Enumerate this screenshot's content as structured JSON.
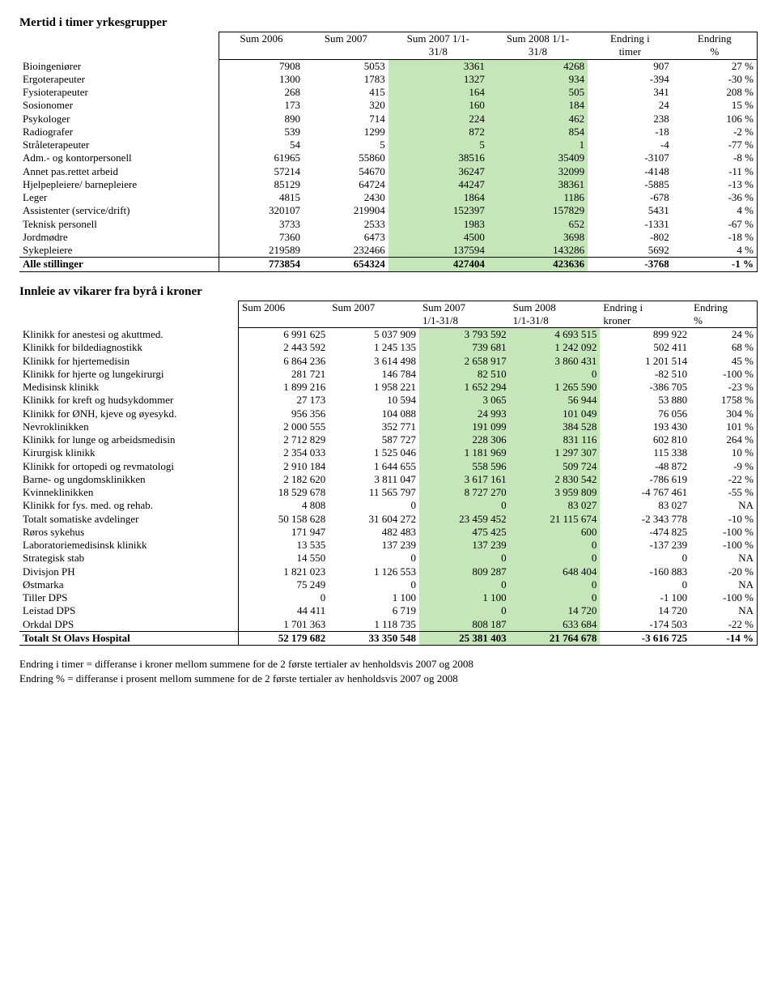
{
  "colors": {
    "highlight": "#c4e6b9",
    "border": "#000000",
    "text": "#000000",
    "background": "#ffffff"
  },
  "table1": {
    "title": "Mertid i timer yrkesgrupper",
    "headers": [
      "Sum 2006",
      "Sum 2007",
      "Sum 2007 1/1-31/8",
      "Sum 2008 1/1-31/8",
      "Endring i timer",
      "Endring %"
    ],
    "headers_l1": [
      "Sum 2006",
      "Sum 2007",
      "Sum 2007 1/1-",
      "Sum 2008 1/1-",
      "Endring i",
      "Endring"
    ],
    "headers_l2": [
      "",
      "",
      "31/8",
      "31/8",
      "timer",
      "%"
    ],
    "rows": [
      {
        "label": "Bioingeniører",
        "v": [
          "7908",
          "5053",
          "3361",
          "4268",
          "907",
          "27 %"
        ]
      },
      {
        "label": "Ergoterapeuter",
        "v": [
          "1300",
          "1783",
          "1327",
          "934",
          "-394",
          "-30 %"
        ]
      },
      {
        "label": "Fysioterapeuter",
        "v": [
          "268",
          "415",
          "164",
          "505",
          "341",
          "208 %"
        ]
      },
      {
        "label": "Sosionomer",
        "v": [
          "173",
          "320",
          "160",
          "184",
          "24",
          "15 %"
        ]
      },
      {
        "label": "Psykologer",
        "v": [
          "890",
          "714",
          "224",
          "462",
          "238",
          "106 %"
        ]
      },
      {
        "label": "Radiografer",
        "v": [
          "539",
          "1299",
          "872",
          "854",
          "-18",
          "-2 %"
        ]
      },
      {
        "label": "Stråleterapeuter",
        "v": [
          "54",
          "5",
          "5",
          "1",
          "-4",
          "-77 %"
        ]
      },
      {
        "label": "Adm.- og kontorpersonell",
        "v": [
          "61965",
          "55860",
          "38516",
          "35409",
          "-3107",
          "-8 %"
        ]
      },
      {
        "label": "Annet pas.rettet arbeid",
        "v": [
          "57214",
          "54670",
          "36247",
          "32099",
          "-4148",
          "-11 %"
        ]
      },
      {
        "label": "Hjelpepleiere/ barnepleiere",
        "v": [
          "85129",
          "64724",
          "44247",
          "38361",
          "-5885",
          "-13 %"
        ]
      },
      {
        "label": "Leger",
        "v": [
          "4815",
          "2430",
          "1864",
          "1186",
          "-678",
          "-36 %"
        ]
      },
      {
        "label": "Assistenter (service/drift)",
        "v": [
          "320107",
          "219904",
          "152397",
          "157829",
          "5431",
          "4 %"
        ]
      },
      {
        "label": "Teknisk personell",
        "v": [
          "3733",
          "2533",
          "1983",
          "652",
          "-1331",
          "-67 %"
        ]
      },
      {
        "label": "Jordmødre",
        "v": [
          "7360",
          "6473",
          "4500",
          "3698",
          "-802",
          "-18 %"
        ]
      },
      {
        "label": "Sykepleiere",
        "v": [
          "219589",
          "232466",
          "137594",
          "143286",
          "5692",
          "4 %"
        ]
      }
    ],
    "total": {
      "label": "Alle stillinger",
      "v": [
        "773854",
        "654324",
        "427404",
        "423636",
        "-3768",
        "-1 %"
      ]
    }
  },
  "table2": {
    "title": "Innleie av vikarer fra byrå i kroner",
    "headers_l1": [
      "Sum 2006",
      "Sum 2007",
      "Sum 2007",
      "Sum 2008",
      "Endring i",
      "Endring"
    ],
    "headers_l2": [
      "",
      "",
      "1/1-31/8",
      "1/1-31/8",
      "kroner",
      "%"
    ],
    "rows": [
      {
        "label": "Klinikk for anestesi og akuttmed.",
        "v": [
          "6 991 625",
          "5 037 909",
          "3 793 592",
          "4 693 515",
          "899 922",
          "24 %"
        ]
      },
      {
        "label": " Klinikk for bildediagnostikk",
        "v": [
          "2 443 592",
          "1 245 135",
          "739 681",
          "1 242 092",
          "502 411",
          "68 %"
        ]
      },
      {
        "label": "Klinikk for hjertemedisin",
        "v": [
          "6 864 236",
          "3 614 498",
          "2 658 917",
          "3 860 431",
          "1 201 514",
          "45 %"
        ]
      },
      {
        "label": " Klinikk for hjerte og lungekirurgi",
        "v": [
          "281 721",
          "146 784",
          "82 510",
          "0",
          "-82 510",
          "-100 %"
        ]
      },
      {
        "label": "Medisinsk klinikk",
        "v": [
          "1 899 216",
          "1 958 221",
          "1 652 294",
          "1 265 590",
          "-386 705",
          "-23 %"
        ]
      },
      {
        "label": "Klinikk for kreft og hudsykdommer",
        "v": [
          "27 173",
          "10 594",
          "3 065",
          "56 944",
          "53 880",
          "1758 %"
        ]
      },
      {
        "label": "Klinikk for ØNH, kjeve og øyesykd.",
        "v": [
          "956 356",
          "104 088",
          "24 993",
          "101 049",
          "76 056",
          "304 %"
        ]
      },
      {
        "label": "Nevroklinikken",
        "v": [
          "2 000 555",
          "352 771",
          "191 099",
          "384 528",
          "193 430",
          "101 %"
        ]
      },
      {
        "label": "Klinikk for lunge og arbeidsmedisin",
        "v": [
          "2 712 829",
          "587 727",
          "228 306",
          "831 116",
          "602 810",
          "264 %"
        ]
      },
      {
        "label": "Kirurgisk klinikk",
        "v": [
          "2 354 033",
          "1 525 046",
          "1 181 969",
          "1 297 307",
          "115 338",
          "10 %"
        ]
      },
      {
        "label": "Klinikk for ortopedi og revmatologi",
        "v": [
          "2 910 184",
          "1 644 655",
          "558 596",
          "509 724",
          "-48 872",
          "-9 %"
        ]
      },
      {
        "label": "Barne- og ungdomsklinikken",
        "v": [
          "2 182 620",
          "3 811 047",
          "3 617 161",
          "2 830 542",
          "-786 619",
          "-22 %"
        ]
      },
      {
        "label": "Kvinneklinikken",
        "v": [
          "18 529 678",
          "11 565 797",
          "8 727 270",
          "3 959 809",
          "-4 767 461",
          "-55 %"
        ]
      },
      {
        "label": "Klinikk for fys. med. og rehab.",
        "v": [
          "4 808",
          "0",
          "0",
          "83 027",
          "83 027",
          "NA"
        ]
      },
      {
        "label": "Totalt somatiske avdelinger",
        "v": [
          "50 158 628",
          "31 604 272",
          "23 459 452",
          "21 115 674",
          "-2 343 778",
          "-10 %"
        ]
      },
      {
        "label": "Røros sykehus",
        "v": [
          "171 947",
          "482 483",
          "475 425",
          "600",
          "-474 825",
          "-100 %"
        ]
      },
      {
        "label": "Laboratoriemedisinsk klinikk",
        "v": [
          "13 535",
          "137 239",
          "137 239",
          "0",
          "-137 239",
          "-100 %"
        ]
      },
      {
        "label": "Strategisk stab",
        "v": [
          "14 550",
          "0",
          "0",
          "0",
          "0",
          "NA"
        ]
      },
      {
        "label": "Divisjon PH",
        "v": [
          "1 821 023",
          "1 126 553",
          "809 287",
          "648 404",
          "-160 883",
          "-20 %"
        ]
      },
      {
        "label": "Østmarka",
        "v": [
          "75 249",
          "0",
          "0",
          "0",
          "0",
          "NA"
        ]
      },
      {
        "label": "Tiller DPS",
        "v": [
          "0",
          "1 100",
          "1 100",
          "0",
          "-1 100",
          "-100 %"
        ]
      },
      {
        "label": "Leistad DPS",
        "v": [
          "44 411",
          "6 719",
          "0",
          "14 720",
          "14 720",
          "NA"
        ]
      },
      {
        "label": "Orkdal DPS",
        "v": [
          "1 701 363",
          "1 118 735",
          "808 187",
          "633 684",
          "-174 503",
          "-22 %"
        ]
      }
    ],
    "total": {
      "label": "Totalt St Olavs Hospital",
      "v": [
        "52 179 682",
        "33 350 548",
        "25 381 403",
        "21 764 678",
        "-3 616 725",
        "-14 %"
      ]
    }
  },
  "footnotes": [
    "Endring i timer = differanse i kroner mellom summene for de 2 første tertialer av henholdsvis 2007 og 2008",
    "Endring % = differanse i prosent mellom summene for de 2 første tertialer av henholdsvis 2007 og 2008"
  ]
}
